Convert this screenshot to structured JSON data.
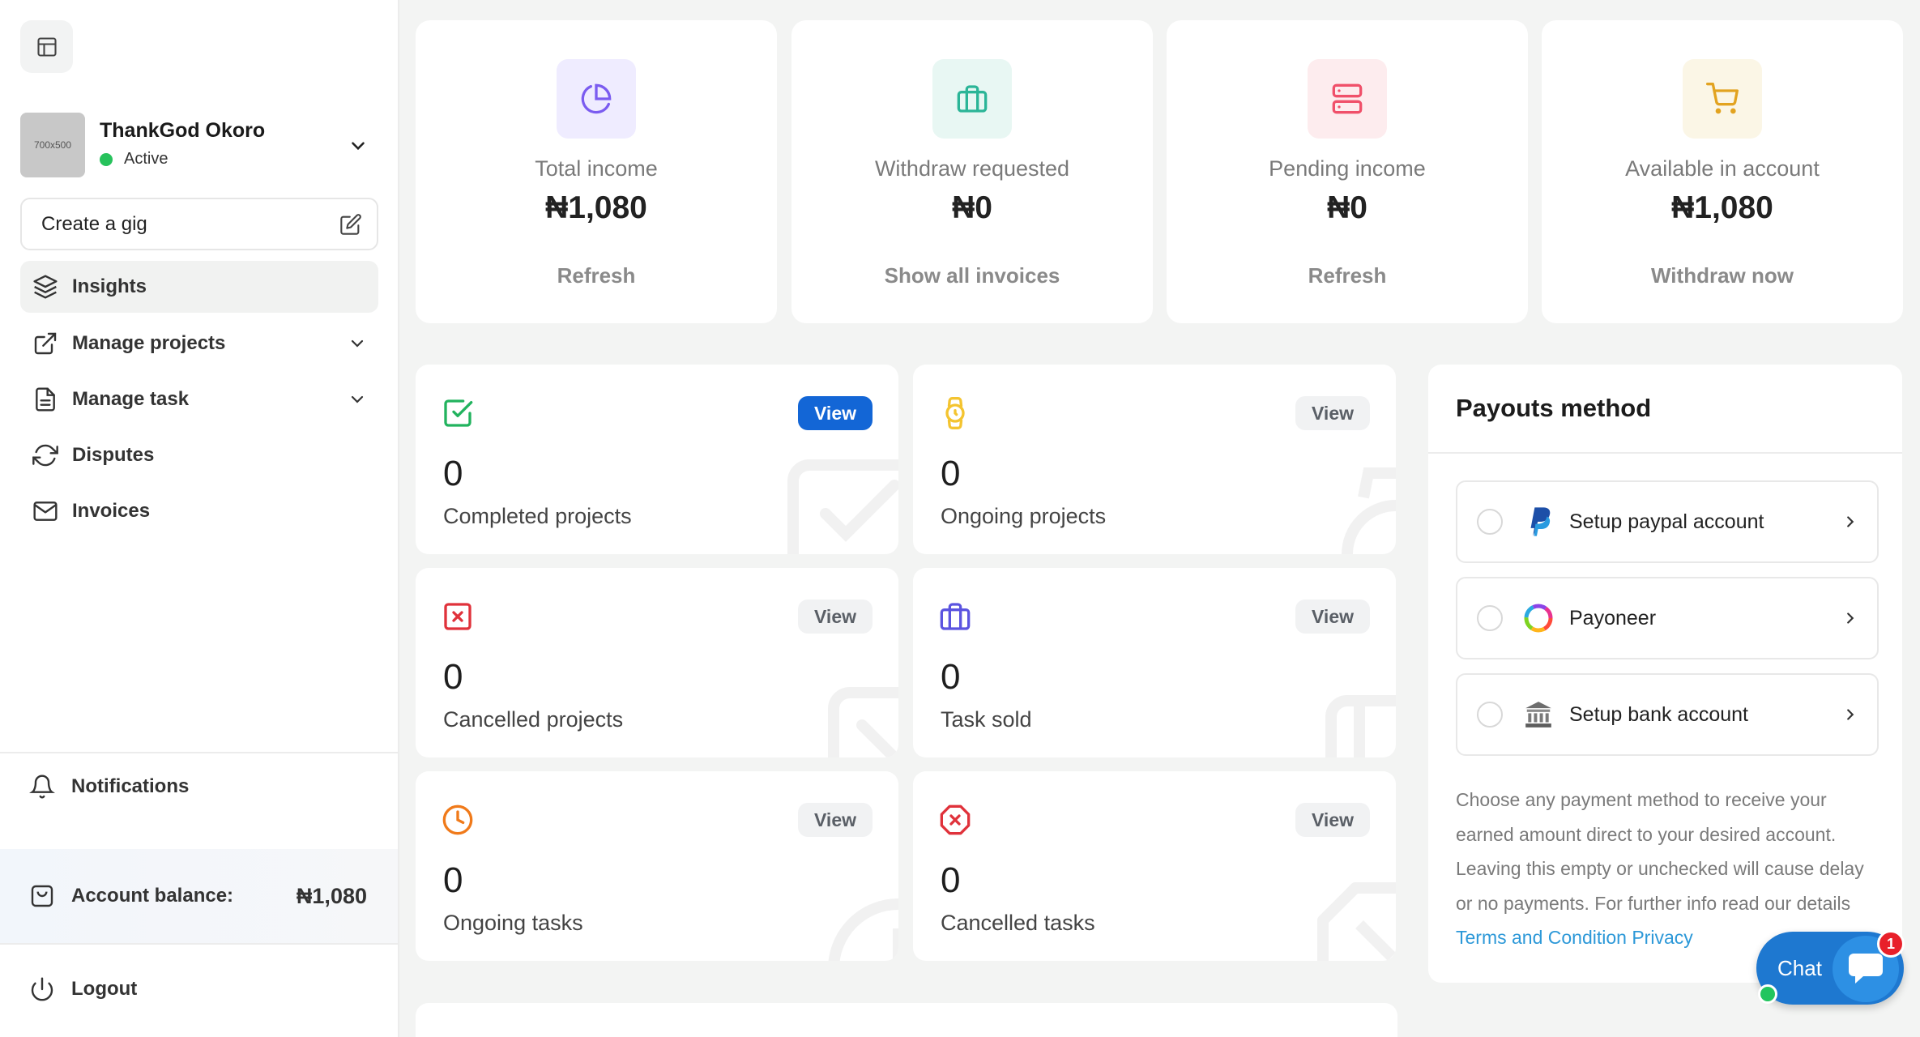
{
  "sidebar": {
    "avatar_text": "700x500",
    "user_name": "ThankGod Okoro",
    "user_status": "Active",
    "create_gig_label": "Create a gig",
    "nav": {
      "insights": "Insights",
      "manage_projects": "Manage projects",
      "manage_task": "Manage task",
      "disputes": "Disputes",
      "invoices": "Invoices"
    },
    "notifications_label": "Notifications",
    "account_balance_label": "Account balance:",
    "account_balance_value": "₦1,080",
    "logout_label": "Logout"
  },
  "stats": [
    {
      "label": "Total income",
      "value": "₦1,080",
      "action": "Refresh",
      "icon": "pie-chart-icon",
      "bg": "#efecff",
      "color": "#7b5cf0"
    },
    {
      "label": "Withdraw requested",
      "value": "₦0",
      "action": "Show all invoices",
      "icon": "briefcase-icon",
      "bg": "#e8f7f3",
      "color": "#2bb597"
    },
    {
      "label": "Pending income",
      "value": "₦0",
      "action": "Refresh",
      "icon": "server-icon",
      "bg": "#fdecee",
      "color": "#f0506a"
    },
    {
      "label": "Available in account",
      "value": "₦1,080",
      "action": "Withdraw now",
      "icon": "cart-icon",
      "bg": "#fbf6e6",
      "color": "#e2a320"
    }
  ],
  "projects": {
    "view_label": "View",
    "cards": [
      {
        "count": "0",
        "label": "Completed projects",
        "icon": "check-square-icon",
        "color": "#22b35e"
      },
      {
        "count": "0",
        "label": "Ongoing projects",
        "icon": "watch-icon",
        "color": "#f4c430"
      },
      {
        "count": "0",
        "label": "Cancelled projects",
        "icon": "x-square-icon",
        "color": "#e0323b"
      },
      {
        "count": "0",
        "label": "Task sold",
        "icon": "briefcase-icon",
        "color": "#5b54e0"
      },
      {
        "count": "0",
        "label": "Ongoing tasks",
        "icon": "clock-icon",
        "color": "#f07a1a"
      },
      {
        "count": "0",
        "label": "Cancelled tasks",
        "icon": "x-octagon-icon",
        "color": "#e0323b"
      }
    ]
  },
  "payouts": {
    "title": "Payouts method",
    "options": [
      {
        "label": "Setup paypal account",
        "icon": "paypal-icon"
      },
      {
        "label": "Payoneer",
        "icon": "payoneer-icon"
      },
      {
        "label": "Setup bank account",
        "icon": "bank-icon"
      }
    ],
    "note": "Choose any payment method to receive your earned amount direct to your desired account. Leaving this empty or unchecked will cause delay or no payments. For further info read our details ",
    "note_link_terms": "Terms and Condition",
    "note_link_privacy": "Privacy"
  },
  "chat": {
    "label": "Chat",
    "badge": "1"
  }
}
